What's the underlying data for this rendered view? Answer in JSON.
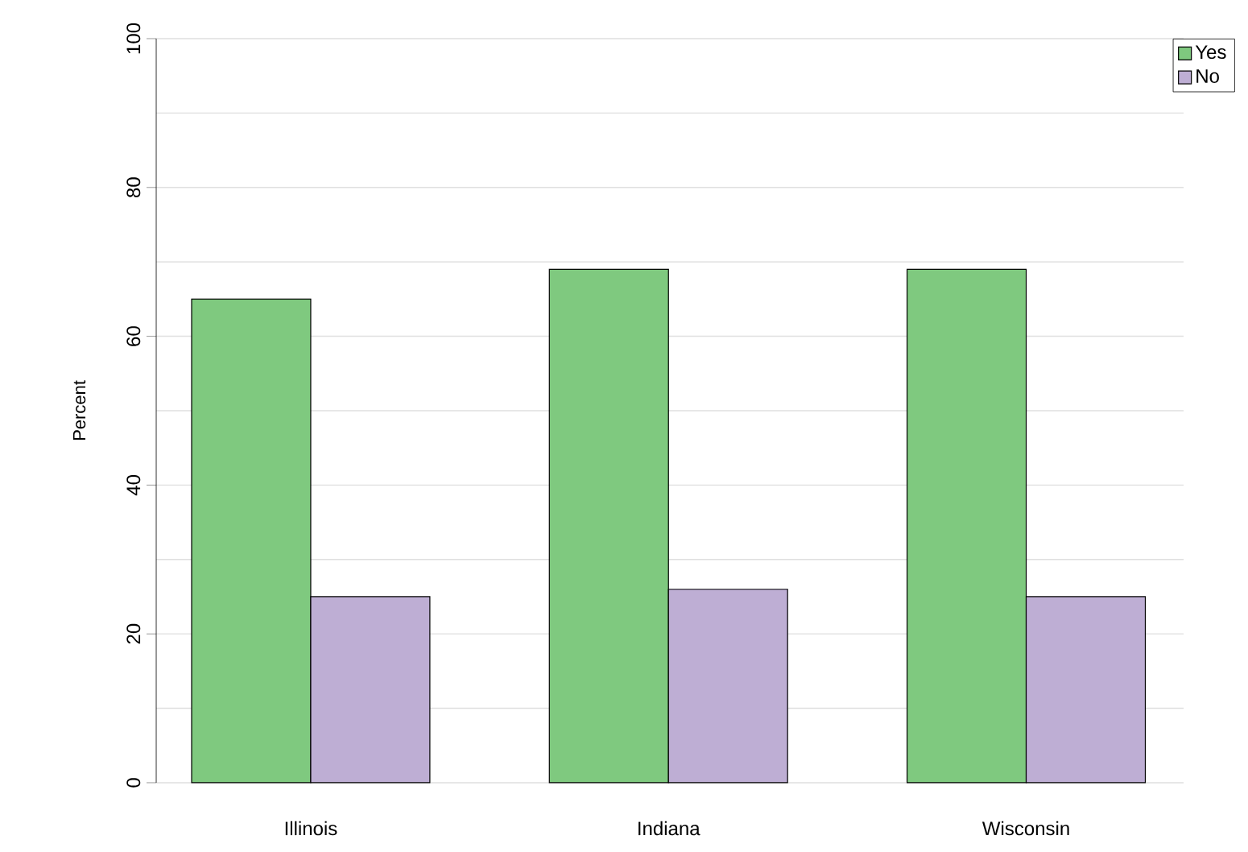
{
  "chart_data": {
    "type": "bar",
    "ylabel": "Percent",
    "categories": [
      "Illinois",
      "Indiana",
      "Wisconsin"
    ],
    "series": [
      {
        "name": "Yes",
        "color": "#7fc97f",
        "values": [
          65,
          69,
          69
        ]
      },
      {
        "name": "No",
        "color": "#beaed4",
        "values": [
          25,
          26,
          25
        ]
      }
    ],
    "ylim": [
      0,
      100
    ],
    "yticks": [
      0,
      20,
      40,
      60,
      80,
      100
    ],
    "grid": "y",
    "legend": "top right"
  }
}
